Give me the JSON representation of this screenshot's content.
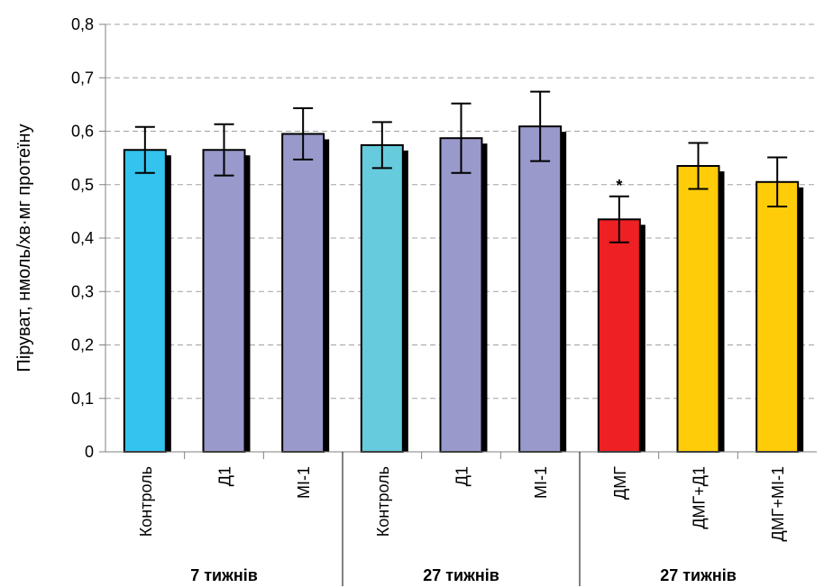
{
  "chart_data": {
    "type": "bar",
    "ylabel": "Піруват, нмоль/хв·мг протеїну",
    "ylim": [
      0,
      0.8
    ],
    "y_ticks": [
      "0",
      "0,1",
      "0,2",
      "0,3",
      "0,4",
      "0,5",
      "0,6",
      "0,7",
      "0,8"
    ],
    "y_tick_values": [
      0,
      0.1,
      0.2,
      0.3,
      0.4,
      0.5,
      0.6,
      0.7,
      0.8
    ],
    "grid": "horizontal dashed",
    "categories": [
      "Контроль",
      "Д1",
      "МІ-1",
      "Контроль",
      "Д1",
      "МІ-1",
      "ДМГ",
      "ДМГ+Д1",
      "ДМГ+МІ-1"
    ],
    "values": [
      0.565,
      0.565,
      0.595,
      0.574,
      0.587,
      0.609,
      0.435,
      0.535,
      0.505
    ],
    "errors": [
      0.043,
      0.048,
      0.048,
      0.043,
      0.065,
      0.065,
      0.043,
      0.043,
      0.046
    ],
    "colors": [
      "#33c3ee",
      "#9999cc",
      "#9999cc",
      "#66cbdc",
      "#9999cc",
      "#9999cc",
      "#ee2024",
      "#ffcc0a",
      "#ffcc0a"
    ],
    "annotations": [
      {
        "category_index": 6,
        "text": "*"
      }
    ],
    "groups": [
      {
        "label": "7 тижнів",
        "start": 0,
        "end": 2
      },
      {
        "label": "27 тижнів",
        "start": 3,
        "end": 5
      },
      {
        "label": "27 тижнів",
        "start": 6,
        "end": 8
      }
    ]
  }
}
